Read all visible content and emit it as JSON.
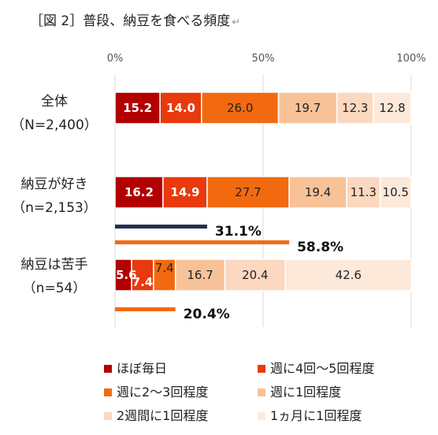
{
  "title": "［図 2］普段、納豆を食べる頻度",
  "title_mark": "↵",
  "chart_data": {
    "type": "bar",
    "orientation": "horizontal",
    "stacked": "percent",
    "xlim": [
      0,
      100
    ],
    "ticks": [
      "0%",
      "50%",
      "100%"
    ],
    "grid": true,
    "legend_position": "bottom",
    "categories": [
      {
        "label1": "全体",
        "label2": "（N=2,400）"
      },
      {
        "label1": "納豆が好き",
        "label2": "（n=2,153）"
      },
      {
        "label1": "納豆は苦手",
        "label2": "（n=54）"
      }
    ],
    "series": [
      {
        "name": "ほぼ毎日",
        "color": "#b20000",
        "label_color": "#ffffff",
        "bold": true,
        "values": [
          15.2,
          16.2,
          5.6
        ]
      },
      {
        "name": "週に4回～5回程度",
        "color": "#e83a0c",
        "label_color": "#ffffff",
        "bold": true,
        "values": [
          14.0,
          14.9,
          7.4
        ]
      },
      {
        "name": "週に2～3回程度",
        "color": "#f26a0f",
        "label_color": "#222222",
        "bold": false,
        "values": [
          26.0,
          27.7,
          7.4
        ]
      },
      {
        "name": "週に1回程度",
        "color": "#f8c298",
        "label_color": "#222222",
        "bold": false,
        "values": [
          19.7,
          19.4,
          16.7
        ]
      },
      {
        "name": "2週間に1回程度",
        "color": "#fbd8bf",
        "label_color": "#222222",
        "bold": false,
        "values": [
          12.3,
          11.3,
          20.4
        ]
      },
      {
        "name": "1ヵ月に1回程度",
        "color": "#fde9da",
        "label_color": "#222222",
        "bold": false,
        "values": [
          12.8,
          10.5,
          42.6
        ]
      }
    ],
    "annotations": [
      {
        "row": 1,
        "value": 31.1,
        "label": "31.1%",
        "color": "#1f3050"
      },
      {
        "row": 1,
        "value": 58.8,
        "label": "58.8%",
        "color": "#f26a0f"
      },
      {
        "row": 2,
        "value": 20.4,
        "label": "20.4%",
        "color": "#f26a0f"
      }
    ]
  }
}
